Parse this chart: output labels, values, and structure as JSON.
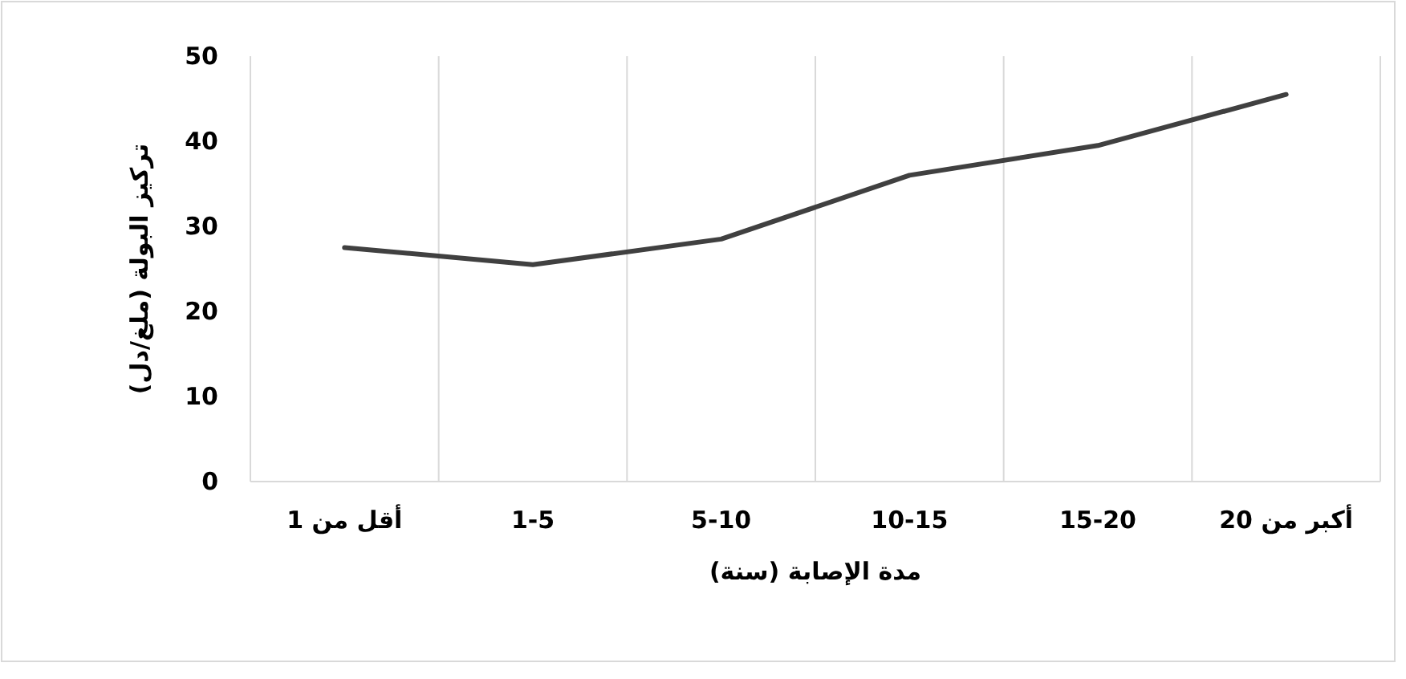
{
  "chart_data": {
    "type": "line",
    "xlabel": "مدة الإصابة (سنة)",
    "ylabel": "تركيز البولة (ملغ/دل)",
    "categories": [
      "أقل من 1",
      "1-5",
      "5-10",
      "10-15",
      "15-20",
      "أكبر من 20"
    ],
    "series": [
      {
        "color": "#404040",
        "values": [
          27.5,
          25.5,
          28.5,
          36,
          39.5,
          45.5
        ]
      }
    ],
    "ylim": [
      0,
      50
    ],
    "yticks": [
      0,
      10,
      20,
      30,
      40,
      50
    ],
    "grid": "x"
  }
}
